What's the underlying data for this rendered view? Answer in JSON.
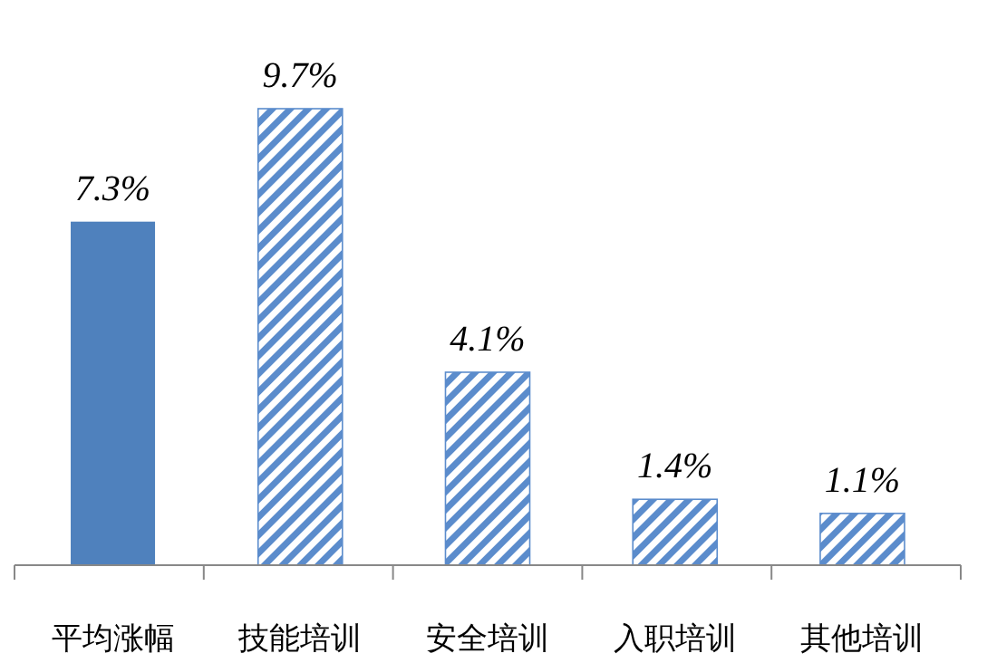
{
  "chart_data": {
    "type": "bar",
    "categories": [
      "平均涨幅",
      "技能培训",
      "安全培训",
      "入职培训",
      "其他培训"
    ],
    "values": [
      7.3,
      9.7,
      4.1,
      1.4,
      1.1
    ],
    "value_labels": [
      "7.3%",
      "9.7%",
      "4.1%",
      "1.4%",
      "1.1%"
    ],
    "color": "#4f81bd",
    "colors": [
      "#4f81bd",
      "#5b8ccc",
      "#5b8ccc",
      "#5b8ccc",
      "#5b8ccc"
    ]
  }
}
